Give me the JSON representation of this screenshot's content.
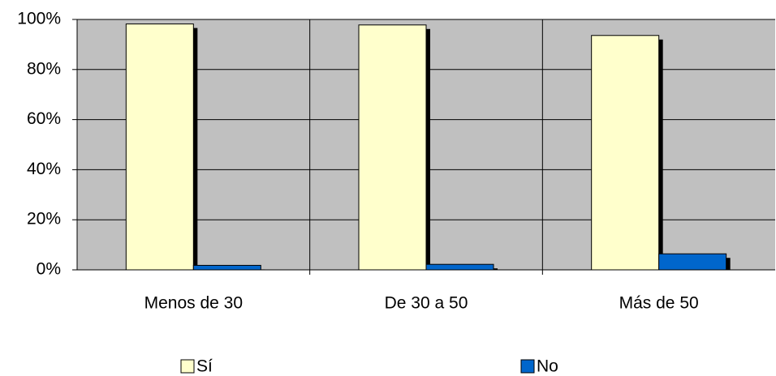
{
  "chart_data": {
    "type": "bar",
    "categories": [
      "Menos de 30",
      "De 30 a 50",
      "Más de 50"
    ],
    "series": [
      {
        "name": "Sí",
        "color": "#FFFFCC",
        "values": [
          98.2,
          97.8,
          93.6
        ]
      },
      {
        "name": "No",
        "color": "#0066CC",
        "values": [
          1.8,
          2.2,
          6.4
        ]
      }
    ],
    "ylim": [
      0,
      100
    ],
    "yticks": [
      {
        "value": 0,
        "label": "0%"
      },
      {
        "value": 20,
        "label": "20%"
      },
      {
        "value": 40,
        "label": "40%"
      },
      {
        "value": 60,
        "label": "60%"
      },
      {
        "value": 80,
        "label": "80%"
      },
      {
        "value": 100,
        "label": "100%"
      }
    ],
    "grid": true,
    "plot_background": "#C0C0C0",
    "legend": "bottom"
  }
}
